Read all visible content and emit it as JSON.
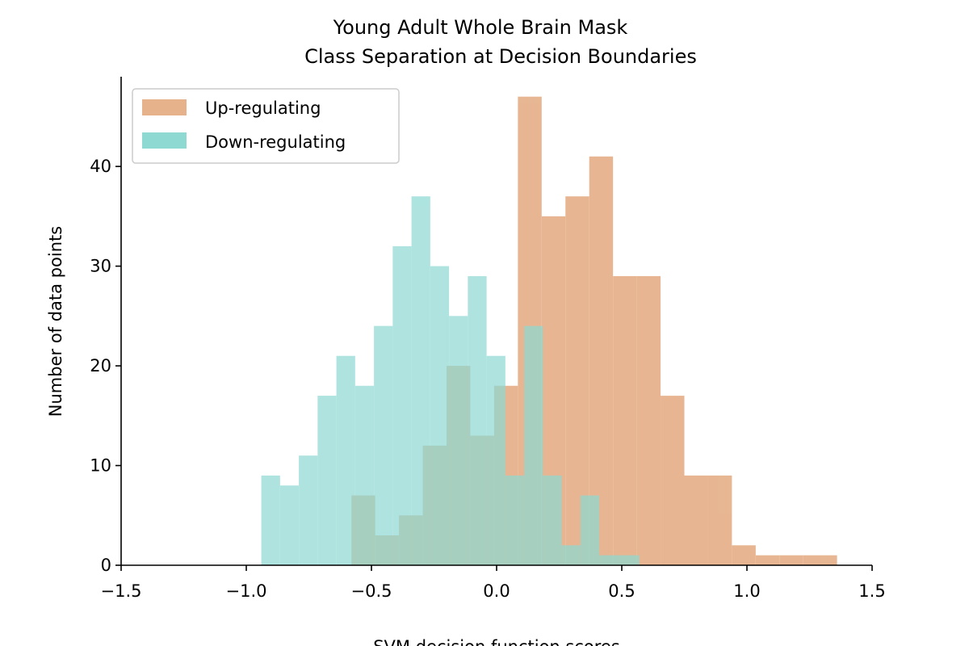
{
  "chart_data": {
    "type": "bar",
    "title_lines": [
      "Young Adult Whole Brain Mask",
      "Class Separation at Decision Boundaries"
    ],
    "xlabel": "SVM decision function scores",
    "ylabel": "Number of data points",
    "xlim": [
      -1.5,
      1.5
    ],
    "ylim": [
      0,
      49
    ],
    "x_ticks": [
      -1.5,
      -1.0,
      -0.5,
      0.0,
      0.5,
      1.0,
      1.5
    ],
    "x_tick_labels": [
      "−1.5",
      "−1.0",
      "−0.5",
      "0.0",
      "0.5",
      "1.0",
      "1.5"
    ],
    "y_ticks": [
      0,
      10,
      20,
      30,
      40
    ],
    "y_tick_labels": [
      "0",
      "10",
      "20",
      "30",
      "40"
    ],
    "grid": false,
    "legend_position": "top-left",
    "series": [
      {
        "name": "Up-regulating",
        "color": "#e6b28c",
        "bin_edges": [
          -0.58,
          -0.485,
          -0.39,
          -0.295,
          -0.2,
          -0.105,
          -0.01,
          0.085,
          0.18,
          0.275,
          0.37,
          0.465,
          0.56,
          0.655,
          0.75,
          0.845,
          0.94,
          1.035,
          1.13,
          1.225,
          1.36
        ],
        "counts": [
          7,
          3,
          5,
          12,
          20,
          13,
          18,
          47,
          35,
          37,
          41,
          29,
          29,
          17,
          9,
          9,
          2,
          1,
          1,
          1
        ]
      },
      {
        "name": "Down-regulating",
        "color": "#8fd9d3",
        "bin_edges": [
          -0.94,
          -0.865,
          -0.79,
          -0.715,
          -0.64,
          -0.565,
          -0.49,
          -0.415,
          -0.34,
          -0.265,
          -0.19,
          -0.115,
          -0.04,
          0.035,
          0.11,
          0.185,
          0.26,
          0.335,
          0.41,
          0.485,
          0.57
        ],
        "counts": [
          9,
          8,
          11,
          17,
          21,
          18,
          24,
          32,
          37,
          30,
          25,
          29,
          21,
          9,
          24,
          9,
          2,
          7,
          1,
          1
        ]
      }
    ]
  }
}
